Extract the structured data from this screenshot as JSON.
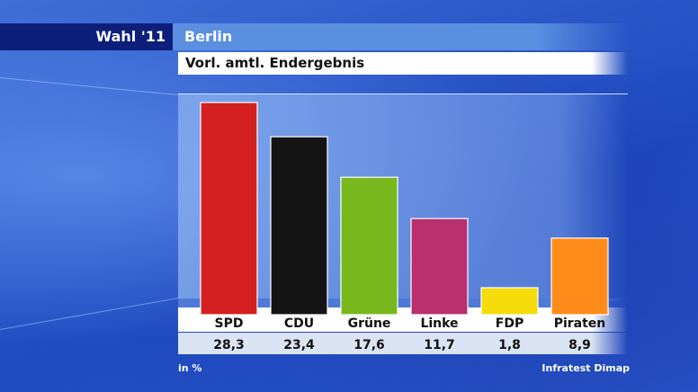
{
  "header": {
    "election_label": "Wahl '11",
    "region": "Berlin",
    "subtitle": "Vorl. amtl. Endergebnis"
  },
  "footer": {
    "unit": "in %",
    "source": "Infratest Dimap"
  },
  "chart_data": {
    "type": "bar",
    "title": "Vorl. amtl. Endergebnis",
    "categories": [
      "SPD",
      "CDU",
      "Grüne",
      "Linke",
      "FDP",
      "Piraten"
    ],
    "values": [
      28.3,
      23.4,
      17.6,
      11.7,
      1.8,
      8.9
    ],
    "value_labels": [
      "28,3",
      "23,4",
      "17,6",
      "11,7",
      "1,8",
      "8,9"
    ],
    "colors": [
      "#d42020",
      "#141414",
      "#78b81c",
      "#b8306e",
      "#f5dc0a",
      "#ff8c1a"
    ],
    "ylim": [
      0,
      28.3
    ],
    "grid": false,
    "legend": "none"
  }
}
